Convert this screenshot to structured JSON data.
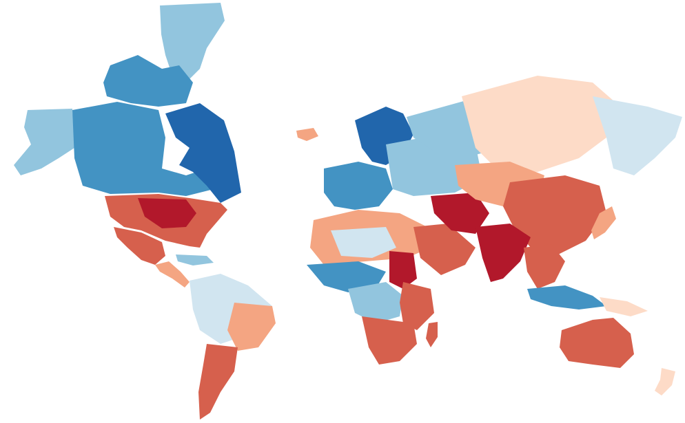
{
  "map": {
    "projection": "mercator",
    "style": "choropleth raster, diverging blue-to-red palette, no labels, no legend, no borders",
    "background": "#ffffff",
    "palette": {
      "deep_blue": "#2166ac",
      "blue": "#4393c3",
      "light_blue": "#92c5de",
      "pale_blue": "#d1e5f0",
      "pale_red": "#fddbc7",
      "light_red": "#f4a582",
      "red": "#d6604d",
      "deep_red": "#b2182b"
    }
  },
  "regions": [
    {
      "name": "greenland",
      "color": "light_blue"
    },
    {
      "name": "canadian-arctic-archipelago",
      "color": "blue"
    },
    {
      "name": "alaska",
      "color": "light_blue"
    },
    {
      "name": "canada",
      "color": "blue"
    },
    {
      "name": "hudson-bay-east-canada",
      "color": "deep_blue"
    },
    {
      "name": "united-states",
      "color": "red"
    },
    {
      "name": "us-southeast",
      "color": "deep_red"
    },
    {
      "name": "mexico",
      "color": "red"
    },
    {
      "name": "central-america",
      "color": "light_red"
    },
    {
      "name": "caribbean",
      "color": "light_blue"
    },
    {
      "name": "south-america-north",
      "color": "pale_blue"
    },
    {
      "name": "brazil-east",
      "color": "light_red"
    },
    {
      "name": "south-america-south",
      "color": "red"
    },
    {
      "name": "iceland",
      "color": "light_red"
    },
    {
      "name": "scandinavia",
      "color": "deep_blue"
    },
    {
      "name": "western-europe",
      "color": "blue"
    },
    {
      "name": "eastern-europe",
      "color": "light_blue"
    },
    {
      "name": "north-africa",
      "color": "light_red"
    },
    {
      "name": "sahara-central",
      "color": "pale_blue"
    },
    {
      "name": "sudan",
      "color": "deep_red"
    },
    {
      "name": "west-africa",
      "color": "blue"
    },
    {
      "name": "central-africa",
      "color": "light_blue"
    },
    {
      "name": "east-africa",
      "color": "red"
    },
    {
      "name": "southern-africa",
      "color": "red"
    },
    {
      "name": "madagascar",
      "color": "red"
    },
    {
      "name": "arabian-peninsula",
      "color": "red"
    },
    {
      "name": "middle-east",
      "color": "deep_red"
    },
    {
      "name": "russia-west",
      "color": "light_blue"
    },
    {
      "name": "siberia",
      "color": "pale_red"
    },
    {
      "name": "russia-far-east",
      "color": "pale_blue"
    },
    {
      "name": "central-asia",
      "color": "light_red"
    },
    {
      "name": "china",
      "color": "red"
    },
    {
      "name": "india",
      "color": "deep_red"
    },
    {
      "name": "southeast-asia",
      "color": "red"
    },
    {
      "name": "japan",
      "color": "light_red"
    },
    {
      "name": "indonesia",
      "color": "blue"
    },
    {
      "name": "new-guinea",
      "color": "pale_red"
    },
    {
      "name": "australia",
      "color": "red"
    },
    {
      "name": "new-zealand",
      "color": "pale_red"
    }
  ]
}
